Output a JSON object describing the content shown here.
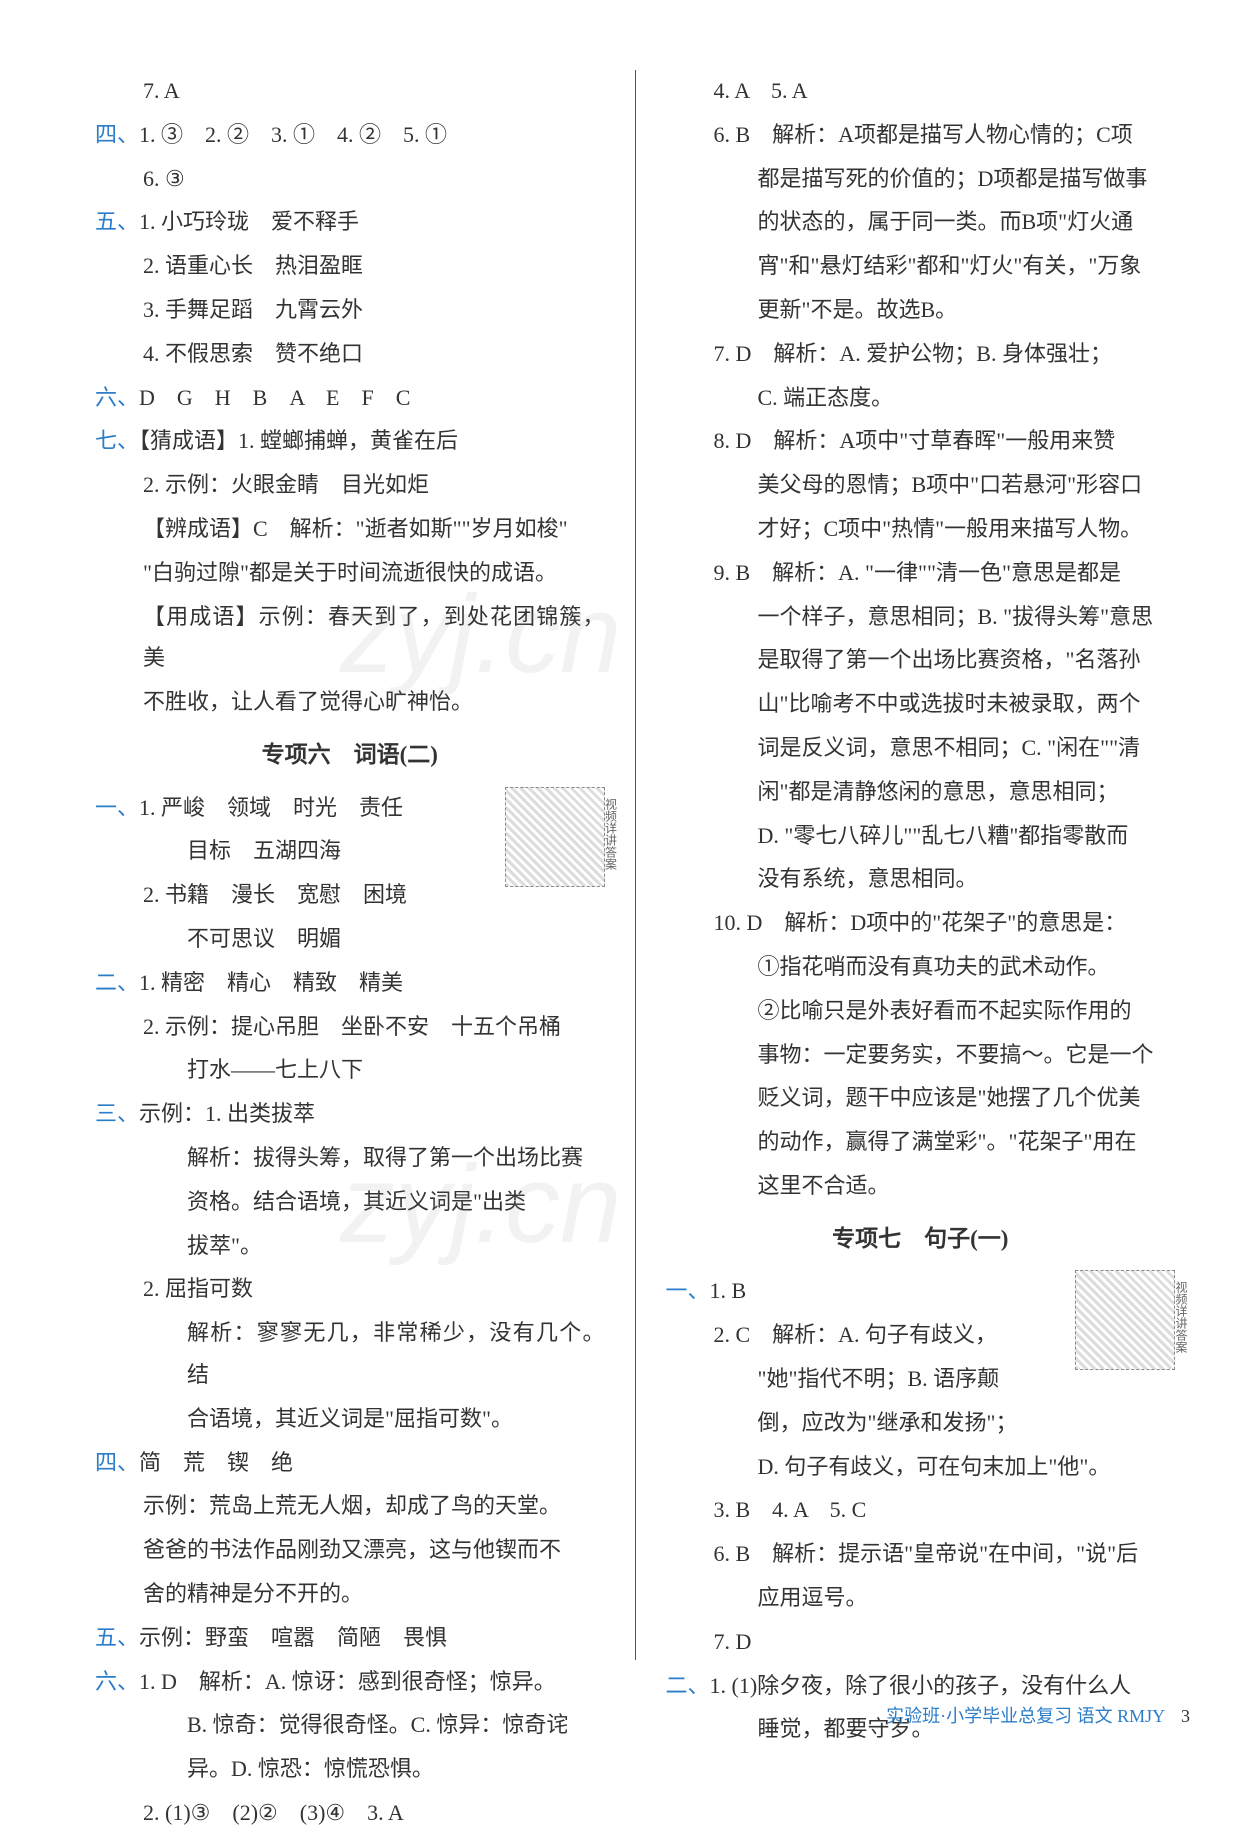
{
  "colors": {
    "section_number": "#2b7dc9",
    "text": "#333333",
    "background": "#ffffff",
    "divider": "#555555",
    "footer": "#2b7dc9"
  },
  "typography": {
    "body_fontsize": 22,
    "heading_fontsize": 23,
    "line_height": 1.9,
    "font_family": "SimSun"
  },
  "watermark_text": "zyj.cn",
  "left_column": {
    "l0": "7. A",
    "s4": "四、",
    "l1": "1. ③　2. ②　3. ①　4. ②　5. ①",
    "l2": "6. ③",
    "s5": "五、",
    "l3": "1. 小巧玲珑　爱不释手",
    "l4": "2. 语重心长　热泪盈眶",
    "l5": "3. 手舞足蹈　九霄云外",
    "l6": "4. 不假思索　赞不绝口",
    "s6": "六、",
    "l7": "D　G　H　B　A　E　F　C",
    "s7": "七、",
    "l8": "【猜成语】1. 螳螂捕蝉，黄雀在后",
    "l9": "2. 示例：火眼金睛　目光如炬",
    "l10": "【辨成语】C　解析：\"逝者如斯\"\"岁月如梭\"",
    "l11": "\"白驹过隙\"都是关于时间流逝很快的成语。",
    "l12": "【用成语】示例：春天到了，到处花团锦簇，美",
    "l13": "不胜收，让人看了觉得心旷神怡。",
    "heading6": "专项六　词语(二)",
    "qr6_label": "视频详讲答案",
    "s1b": "一、",
    "l14": "1. 严峻　领域　时光　责任",
    "l15": "目标　五湖四海",
    "l16": "2. 书籍　漫长　宽慰　困境",
    "l17": "不可思议　明媚",
    "s2b": "二、",
    "l18": "1. 精密　精心　精致　精美",
    "l19": "2. 示例：提心吊胆　坐卧不安　十五个吊桶",
    "l20": "打水——七上八下",
    "s3b": "三、",
    "l21": "示例：1. 出类拔萃",
    "l22": "解析：拔得头筹，取得了第一个出场比赛",
    "l23": "资格。结合语境，其近义词是\"出类",
    "l24": "拔萃\"。",
    "l25": "2. 屈指可数",
    "l26": "解析：寥寥无几，非常稀少，没有几个。结",
    "l27": "合语境，其近义词是\"屈指可数\"。",
    "s4b": "四、",
    "l28": "简　荒　锲　绝",
    "l29": "示例：荒岛上荒无人烟，却成了鸟的天堂。",
    "l30": "爸爸的书法作品刚劲又漂亮，这与他锲而不",
    "l31": "舍的精神是分不开的。",
    "s5b": "五、",
    "l32": "示例：野蛮　喧嚣　简陋　畏惧",
    "s6b": "六、",
    "l33": "1. D　解析：A. 惊讶：感到很奇怪；惊异。",
    "l34": "B. 惊奇：觉得很奇怪。C. 惊异：惊奇诧",
    "l35": "异。D. 惊恐：惊慌恐惧。",
    "l36": "2. (1)③　(2)②　(3)④　3. A"
  },
  "right_column": {
    "r0": "4. A　5. A",
    "r1": "6. B　解析：A项都是描写人物心情的；C项",
    "r2": "都是描写死的价值的；D项都是描写做事",
    "r3": "的状态的，属于同一类。而B项\"灯火通",
    "r4": "宵\"和\"悬灯结彩\"都和\"灯火\"有关，\"万象",
    "r5": "更新\"不是。故选B。",
    "r6": "7. D　解析：A. 爱护公物；B. 身体强壮；",
    "r7": "C. 端正态度。",
    "r8": "8. D　解析：A项中\"寸草春晖\"一般用来赞",
    "r9": "美父母的恩情；B项中\"口若悬河\"形容口",
    "r10": "才好；C项中\"热情\"一般用来描写人物。",
    "r11": "9. B　解析：A. \"一律\"\"清一色\"意思是都是",
    "r12": "一个样子，意思相同；B. \"拔得头筹\"意思",
    "r13": "是取得了第一个出场比赛资格，\"名落孙",
    "r14": "山\"比喻考不中或选拔时未被录取，两个",
    "r15": "词是反义词，意思不相同；C. \"闲在\"\"清",
    "r16": "闲\"都是清静悠闲的意思，意思相同；",
    "r17": "D. \"零七八碎儿\"\"乱七八糟\"都指零散而",
    "r18": "没有系统，意思相同。",
    "r19": "10. D　解析：D项中的\"花架子\"的意思是：",
    "r20": "①指花哨而没有真功夫的武术动作。",
    "r21": "②比喻只是外表好看而不起实际作用的",
    "r22": "事物：一定要务实，不要搞～。它是一个",
    "r23": "贬义词，题干中应该是\"她摆了几个优美",
    "r24": "的动作，赢得了满堂彩\"。\"花架子\"用在",
    "r25": "这里不合适。",
    "heading7": "专项七　句子(一)",
    "qr7_label": "视频详讲答案",
    "rs1": "一、",
    "r26": "1. B",
    "r27": "2. C　解析：A. 句子有歧义，",
    "r28": "\"她\"指代不明；B. 语序颠",
    "r29": "倒，应改为\"继承和发扬\"；",
    "r30": "D. 句子有歧义，可在句末加上\"他\"。",
    "r31": "3. B　4. A　5. C",
    "r32": "6. B　解析：提示语\"皇帝说\"在中间，\"说\"后",
    "r33": "应用逗号。",
    "r34": "7. D",
    "rs2": "二、",
    "r35": "1. (1)除夕夜，除了很小的孩子，没有什么人",
    "r36": "睡觉，都要守岁。"
  },
  "footer": {
    "text": "实验班·小学毕业总复习  语文 RMJY",
    "page": "3"
  }
}
